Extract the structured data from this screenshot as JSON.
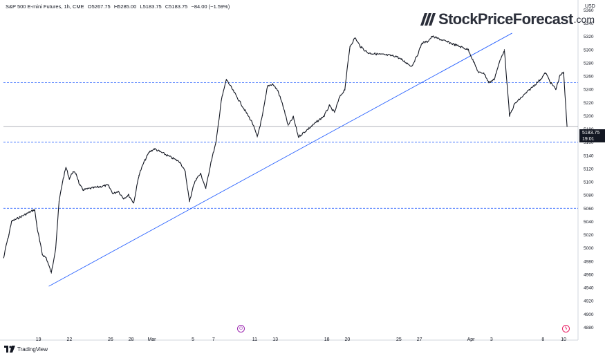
{
  "header": {
    "symbol": "S&P 500 E-mini Futures, 1h, CME",
    "open": "O5267.75",
    "high": "H5285.00",
    "low": "L5183.75",
    "close": "C5183.75",
    "change": "−84.00 (−1.59%)"
  },
  "currency": "USD",
  "logo": {
    "name": "StockPriceForecast",
    "tld": ".com"
  },
  "last_price": {
    "value": "5183.75",
    "countdown": "19:01"
  },
  "footer": {
    "brand": "TradingView"
  },
  "markers": {
    "earnings_glyph": "⊙",
    "dividend_glyph": "ϟ"
  },
  "colors": {
    "trendline": "#2962ff",
    "dashed_levels": "#2962ff",
    "candles": "#131722",
    "marker_purple": "#9c27b0",
    "marker_pink": "#e91e63"
  },
  "chart_data": {
    "type": "line",
    "title": "",
    "y_axis": {
      "ticks": [
        4880,
        4900,
        4920,
        4940,
        4960,
        4980,
        5000,
        5020,
        5040,
        5060,
        5080,
        5100,
        5120,
        5140,
        5160,
        5180,
        5200,
        5220,
        5240,
        5260,
        5280,
        5300,
        5320,
        5340,
        5360
      ],
      "min": 4870,
      "max": 5372
    },
    "x_axis": {
      "labels": [
        "19",
        "22",
        "26",
        "28",
        "Mar",
        "5",
        "7",
        "11",
        "13",
        "18",
        "20",
        "25",
        "27",
        "Apr",
        "3",
        "8",
        "10"
      ]
    },
    "dashed_levels": [
      5250,
      5160,
      5060
    ],
    "last_close": 5183.75,
    "trendline": {
      "from": {
        "date": "Feb 20",
        "value": 4942
      },
      "to": {
        "date": "Apr 5",
        "value": 5325
      }
    },
    "series": [
      {
        "x": [
          "Feb 16",
          "Feb 16",
          "Feb 16",
          "Feb 16",
          "Feb 19",
          "Feb 19",
          "Feb 19",
          "Feb 19",
          "Feb 20",
          "Feb 20",
          "Feb 21",
          "Feb 21",
          "Feb 21",
          "Feb 22",
          "Feb 22",
          "Feb 22",
          "Feb 23",
          "Feb 23",
          "Feb 23",
          "Feb 26",
          "Feb 26",
          "Feb 27",
          "Feb 27",
          "Feb 28",
          "Feb 28",
          "Feb 29",
          "Feb 29",
          "Mar 1",
          "Mar 1",
          "Mar 4",
          "Mar 4",
          "Mar 5",
          "Mar 5",
          "Mar 5",
          "Mar 6",
          "Mar 6",
          "Mar 7",
          "Mar 7",
          "Mar 8",
          "Mar 8",
          "Mar 11",
          "Mar 11",
          "Mar 12",
          "Mar 12",
          "Mar 13",
          "Mar 13",
          "Mar 14",
          "Mar 14",
          "Mar 15",
          "Mar 15",
          "Mar 18",
          "Mar 18",
          "Mar 19",
          "Mar 19",
          "Mar 20",
          "Mar 20",
          "Mar 21",
          "Mar 21",
          "Mar 22",
          "Mar 25",
          "Mar 25",
          "Mar 26",
          "Mar 26",
          "Mar 27",
          "Mar 27",
          "Mar 28",
          "Mar 28",
          "Apr 1",
          "Apr 1",
          "Apr 2",
          "Apr 2",
          "Apr 3",
          "Apr 3",
          "Apr 4",
          "Apr 4",
          "Apr 5",
          "Apr 5",
          "Apr 8",
          "Apr 8",
          "Apr 9",
          "Apr 9",
          "Apr 10",
          "Apr 10",
          "Apr 10"
        ],
        "values": [
          4985,
          5005,
          5020,
          5040,
          5058,
          5030,
          5010,
          4990,
          4985,
          4962,
          5000,
          5070,
          5100,
          5122,
          5105,
          5115,
          5112,
          5095,
          5088,
          5095,
          5082,
          5086,
          5075,
          5080,
          5068,
          5110,
          5130,
          5145,
          5150,
          5130,
          5115,
          5070,
          5092,
          5105,
          5112,
          5090,
          5130,
          5160,
          5223,
          5255,
          5190,
          5168,
          5200,
          5245,
          5248,
          5238,
          5215,
          5185,
          5198,
          5168,
          5200,
          5215,
          5205,
          5228,
          5240,
          5305,
          5318,
          5305,
          5295,
          5290,
          5285,
          5280,
          5275,
          5290,
          5310,
          5312,
          5320,
          5300,
          5282,
          5265,
          5265,
          5250,
          5255,
          5280,
          5300,
          5200,
          5218,
          5255,
          5265,
          5250,
          5240,
          5262,
          5265,
          5183.75
        ]
      }
    ]
  }
}
